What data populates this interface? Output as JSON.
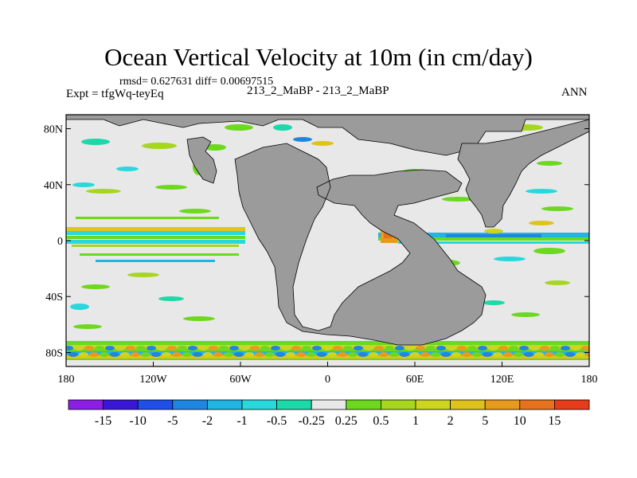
{
  "title": "Ocean Vertical Velocity at 10m (in cm/day)",
  "stats_text": "rmsd= 0.627631 diff= 0.00697515",
  "expt_text": "Expt = tfgWq-teyEq",
  "center_text": "213_2_MaBP - 213_2_MaBP",
  "season_text": "ANN",
  "colors": {
    "land": "#9b9b9b",
    "ocean_neutral": "#e8e8e8"
  },
  "axes": {
    "x_ticks": [
      {
        "value": -180,
        "label": "180"
      },
      {
        "value": -120,
        "label": "120W"
      },
      {
        "value": -60,
        "label": "60W"
      },
      {
        "value": 0,
        "label": "0"
      },
      {
        "value": 60,
        "label": "60E"
      },
      {
        "value": 120,
        "label": "120E"
      },
      {
        "value": 180,
        "label": "180"
      }
    ],
    "y_ticks": [
      {
        "value": 80,
        "label": "80N"
      },
      {
        "value": 40,
        "label": "40N"
      },
      {
        "value": 0,
        "label": "0"
      },
      {
        "value": -40,
        "label": "40S"
      },
      {
        "value": -80,
        "label": "80S"
      }
    ],
    "lon_range": [
      -180,
      180
    ],
    "lat_range": [
      -90,
      90
    ]
  },
  "colorbar": {
    "colors": [
      "#8b1fe6",
      "#3a16d6",
      "#1f4ee8",
      "#1e86e0",
      "#22b4e2",
      "#27d8dc",
      "#1dd8a8",
      "#e8e8e8",
      "#6cd81e",
      "#a6d61e",
      "#cdd61e",
      "#e0c21e",
      "#e69a1e",
      "#e6721e",
      "#e63c1a"
    ],
    "labels": [
      "-15",
      "-10",
      "-5",
      "-2",
      "-1",
      "-0.5",
      "-0.25",
      "0.25",
      "0.5",
      "1",
      "2",
      "5",
      "10",
      "15"
    ]
  }
}
